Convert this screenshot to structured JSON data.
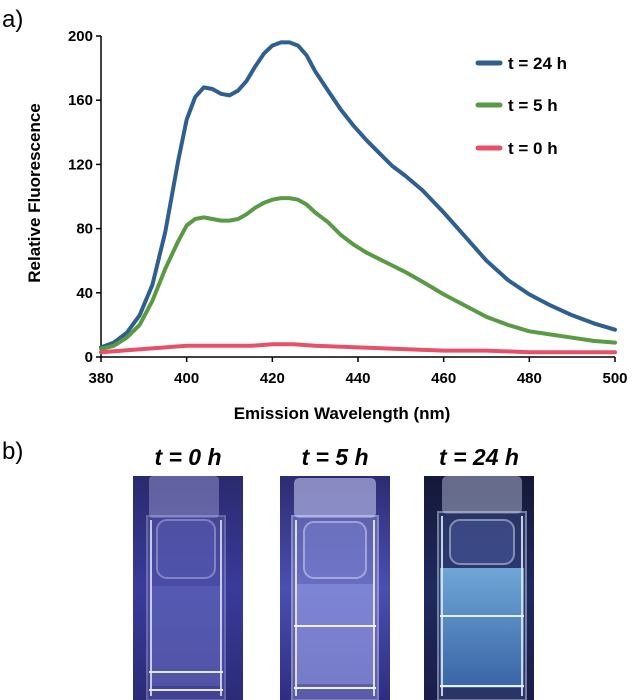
{
  "panel_a_label": "a)",
  "panel_b_label": "b)",
  "chart_data": {
    "type": "line",
    "xlabel": "Emission Wavelength (nm)",
    "ylabel": "Relative Fluorescence",
    "xlim": [
      380,
      500
    ],
    "ylim": [
      0,
      200
    ],
    "xticks": [
      380,
      400,
      420,
      440,
      460,
      480,
      500
    ],
    "yticks": [
      0,
      40,
      80,
      120,
      160,
      200
    ],
    "grid": false,
    "legend_position": "top-right",
    "series": [
      {
        "name": "t = 24 h",
        "color": "#2e5f8e",
        "x": [
          380,
          383,
          386,
          389,
          392,
          395,
          398,
          400,
          402,
          404,
          406,
          408,
          410,
          412,
          414,
          416,
          418,
          420,
          422,
          424,
          426,
          428,
          430,
          433,
          436,
          439,
          442,
          445,
          448,
          451,
          455,
          460,
          465,
          470,
          475,
          480,
          485,
          490,
          495,
          500
        ],
        "y": [
          6,
          9,
          15,
          26,
          45,
          78,
          122,
          148,
          162,
          168,
          167,
          164,
          163,
          166,
          172,
          181,
          189,
          194,
          196,
          196,
          194,
          188,
          178,
          166,
          154,
          144,
          135,
          127,
          119,
          113,
          104,
          90,
          75,
          60,
          48,
          39,
          32,
          26,
          21,
          17
        ]
      },
      {
        "name": "t = 5 h",
        "color": "#5b9a45",
        "x": [
          380,
          383,
          386,
          389,
          392,
          395,
          398,
          400,
          402,
          404,
          406,
          408,
          410,
          412,
          414,
          416,
          418,
          420,
          422,
          424,
          426,
          428,
          430,
          433,
          436,
          439,
          442,
          445,
          448,
          451,
          455,
          460,
          465,
          470,
          475,
          480,
          485,
          490,
          495,
          500
        ],
        "y": [
          5,
          7,
          12,
          20,
          35,
          55,
          72,
          82,
          86,
          87,
          86,
          85,
          85,
          86,
          89,
          93,
          96,
          98,
          99,
          99,
          98,
          95,
          90,
          84,
          76,
          70,
          65,
          61,
          57,
          53,
          47,
          39,
          32,
          25,
          20,
          16,
          14,
          12,
          10,
          9
        ]
      },
      {
        "name": "t = 0 h",
        "color": "#e8506a",
        "x": [
          380,
          385,
          390,
          395,
          400,
          405,
          410,
          415,
          420,
          425,
          430,
          440,
          450,
          460,
          470,
          480,
          490,
          500
        ],
        "y": [
          3,
          4,
          5,
          6,
          7,
          7,
          7,
          7,
          8,
          8,
          7,
          6,
          5,
          4,
          4,
          3,
          3,
          3
        ]
      }
    ]
  },
  "cuvettes": [
    {
      "caption": "t = 0 h"
    },
    {
      "caption": "t = 5 h"
    },
    {
      "caption": "t = 24 h"
    }
  ]
}
